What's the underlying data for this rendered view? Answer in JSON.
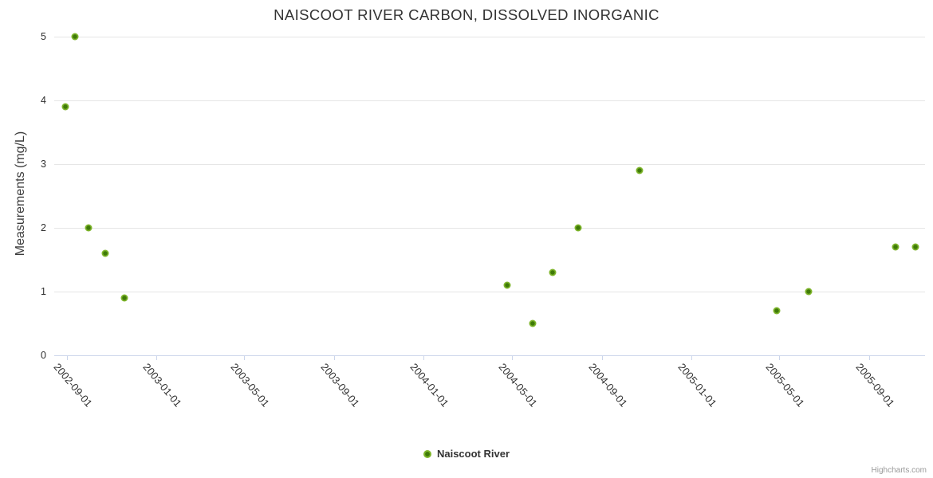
{
  "chart": {
    "credits_label": "Highcharts.com",
    "colors": {
      "background": "#ffffff",
      "grid": "#e6e6e6",
      "axis_line": "#ccd6eb",
      "marker_outer": "#7db42a",
      "marker_inner": "#3f7a08",
      "title_text": "#333333",
      "tick_text": "#2f2f2f",
      "credits_text": "#999999"
    }
  },
  "chart_data": {
    "type": "scatter",
    "title": "NAISCOOT RIVER CARBON, DISSOLVED INORGANIC",
    "xlabel": "",
    "ylabel": "Measurements (mg/L)",
    "ylim": [
      0,
      5
    ],
    "y_ticks": [
      0,
      1,
      2,
      3,
      4,
      5
    ],
    "x_range": [
      "2002-08-15",
      "2005-11-16"
    ],
    "x_ticks": [
      "2002-09-01",
      "2003-01-01",
      "2003-05-01",
      "2003-09-01",
      "2004-01-01",
      "2004-05-01",
      "2004-09-01",
      "2005-01-01",
      "2005-05-01",
      "2005-09-01"
    ],
    "grid": "horizontal",
    "legend_position": "bottom-center",
    "series": [
      {
        "name": "Naiscoot River",
        "points": [
          {
            "date": "2002-08-30",
            "value": 3.9
          },
          {
            "date": "2002-09-12",
            "value": 5.0
          },
          {
            "date": "2002-10-01",
            "value": 2.0
          },
          {
            "date": "2002-10-24",
            "value": 1.6
          },
          {
            "date": "2002-11-19",
            "value": 0.9
          },
          {
            "date": "2004-04-24",
            "value": 1.1
          },
          {
            "date": "2004-05-29",
            "value": 0.5
          },
          {
            "date": "2004-06-25",
            "value": 1.3
          },
          {
            "date": "2004-07-30",
            "value": 2.0
          },
          {
            "date": "2004-10-22",
            "value": 2.9
          },
          {
            "date": "2005-04-28",
            "value": 0.7
          },
          {
            "date": "2005-06-10",
            "value": 1.0
          },
          {
            "date": "2005-10-07",
            "value": 1.7
          },
          {
            "date": "2005-11-03",
            "value": 1.7
          }
        ]
      }
    ]
  }
}
